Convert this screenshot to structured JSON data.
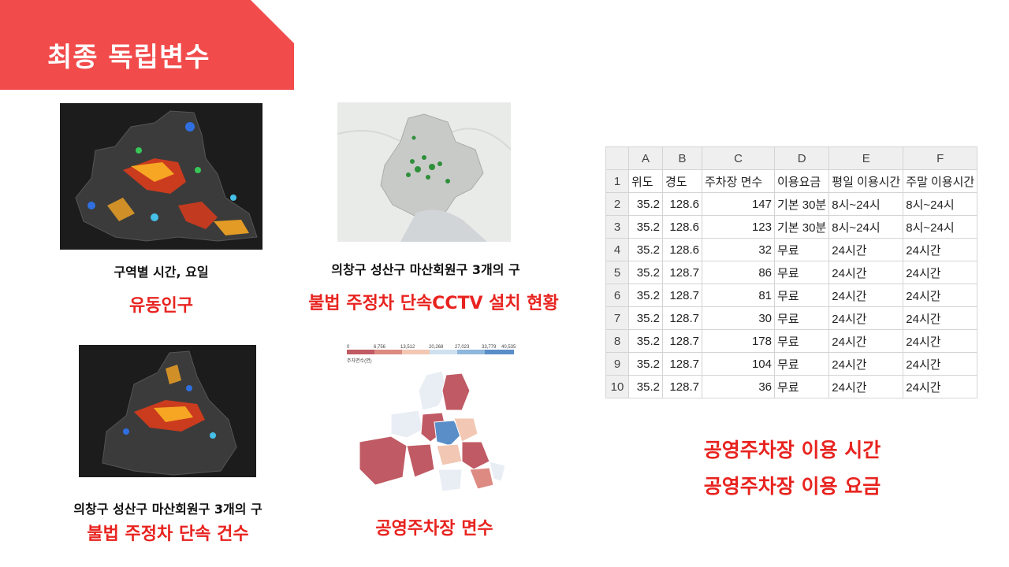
{
  "slide": {
    "title": "최종 독립변수",
    "accent": "#f24b4b"
  },
  "panels": {
    "floating_population": {
      "subtitle": "구역별 시간, 요일",
      "label": "유동인구"
    },
    "cctv": {
      "subtitle": "의창구 성산구 마산회원구 3개의 구",
      "label": "불법 주정차 단속CCTV 설치 현황"
    },
    "enforcement": {
      "subtitle": "의창구 성산구 마산회원구 3개의 구",
      "label": "불법 주정차 단속 건수"
    },
    "parking_area": {
      "label": "공영주차장 면수",
      "legend_ticks": [
        "0",
        "6,756",
        "13,512",
        "20,268",
        "27,023",
        "33,779",
        "40,535"
      ],
      "legend_title": "주차면수(면)"
    }
  },
  "spreadsheet": {
    "column_letters": [
      "A",
      "B",
      "C",
      "D",
      "E",
      "F"
    ],
    "header_row": [
      "1",
      "위도",
      "경도",
      "주차장 면수",
      "이용요금",
      "평일 이용시간",
      "주말 이용시간"
    ],
    "rows": [
      [
        "2",
        "35.2",
        "128.6",
        "147",
        "기본 30분",
        "8시~24시",
        "8시~24시"
      ],
      [
        "3",
        "35.2",
        "128.6",
        "123",
        "기본 30분",
        "8시~24시",
        "8시~24시"
      ],
      [
        "4",
        "35.2",
        "128.6",
        "32",
        "무료",
        "24시간",
        "24시간"
      ],
      [
        "5",
        "35.2",
        "128.7",
        "86",
        "무료",
        "24시간",
        "24시간"
      ],
      [
        "6",
        "35.2",
        "128.7",
        "81",
        "무료",
        "24시간",
        "24시간"
      ],
      [
        "7",
        "35.2",
        "128.7",
        "30",
        "무료",
        "24시간",
        "24시간"
      ],
      [
        "8",
        "35.2",
        "128.7",
        "178",
        "무료",
        "24시간",
        "24시간"
      ],
      [
        "9",
        "35.2",
        "128.7",
        "104",
        "무료",
        "24시간",
        "24시간"
      ],
      [
        "10",
        "35.2",
        "128.7",
        "36",
        "무료",
        "24시간",
        "24시간"
      ]
    ]
  },
  "right_captions": {
    "line1": "공영주차장 이용 시간",
    "line2": "공영주차장 이용 요금"
  }
}
